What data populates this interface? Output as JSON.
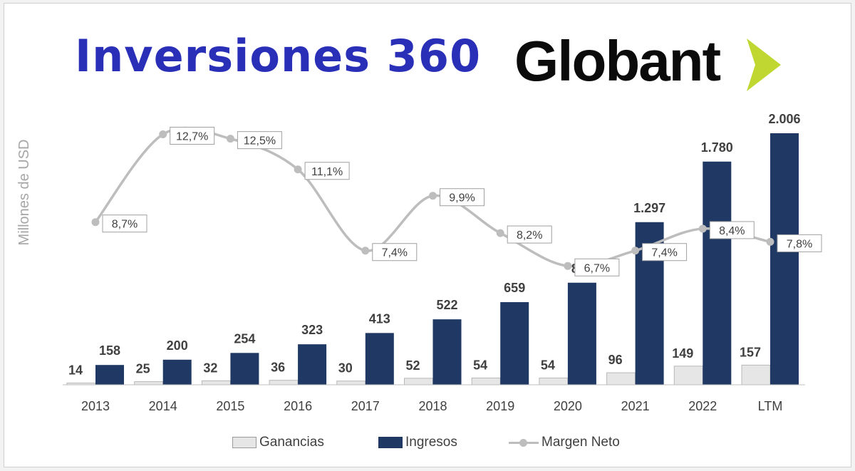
{
  "header": {
    "title": "Inversiones 360",
    "logo_text": "Globant",
    "logo_icon": "chevron-right-icon"
  },
  "colors": {
    "title": "#2a2fb8",
    "ingresos": "#1f3864",
    "ganancias": "#e6e6e6",
    "margen": "#bdbdbd",
    "logo_chevron": "#bfd730"
  },
  "chart_data": {
    "type": "bar",
    "ylabel": "Millones de USD",
    "categories": [
      "2013",
      "2014",
      "2015",
      "2016",
      "2017",
      "2018",
      "2019",
      "2020",
      "2021",
      "2022",
      "LTM"
    ],
    "series": [
      {
        "name": "Ganancias",
        "type": "bar",
        "values": [
          14,
          25,
          32,
          36,
          30,
          52,
          54,
          54,
          96,
          149,
          157
        ],
        "labels": [
          "14",
          "25",
          "32",
          "36",
          "30",
          "52",
          "54",
          "54",
          "96",
          "149",
          "157"
        ]
      },
      {
        "name": "Ingresos",
        "type": "bar",
        "values": [
          158,
          200,
          254,
          323,
          413,
          522,
          659,
          814,
          1297,
          1780,
          2006
        ],
        "labels": [
          "158",
          "200",
          "254",
          "323",
          "413",
          "522",
          "659",
          "814",
          "1.297",
          "1.780",
          "2.006"
        ]
      },
      {
        "name": "Margen Neto",
        "type": "line",
        "axis": "secondary",
        "values": [
          8.7,
          12.7,
          12.5,
          11.1,
          7.4,
          9.9,
          8.2,
          6.7,
          7.4,
          8.4,
          7.8
        ],
        "labels": [
          "8,7%",
          "12,7%",
          "12,5%",
          "11,1%",
          "7,4%",
          "9,9%",
          "8,2%",
          "6,7%",
          "7,4%",
          "8,4%",
          "7,8%"
        ]
      }
    ],
    "legend": {
      "position": "bottom",
      "entries": [
        "Ganancias",
        "Ingresos",
        "Margen Neto"
      ]
    },
    "grid": false
  }
}
